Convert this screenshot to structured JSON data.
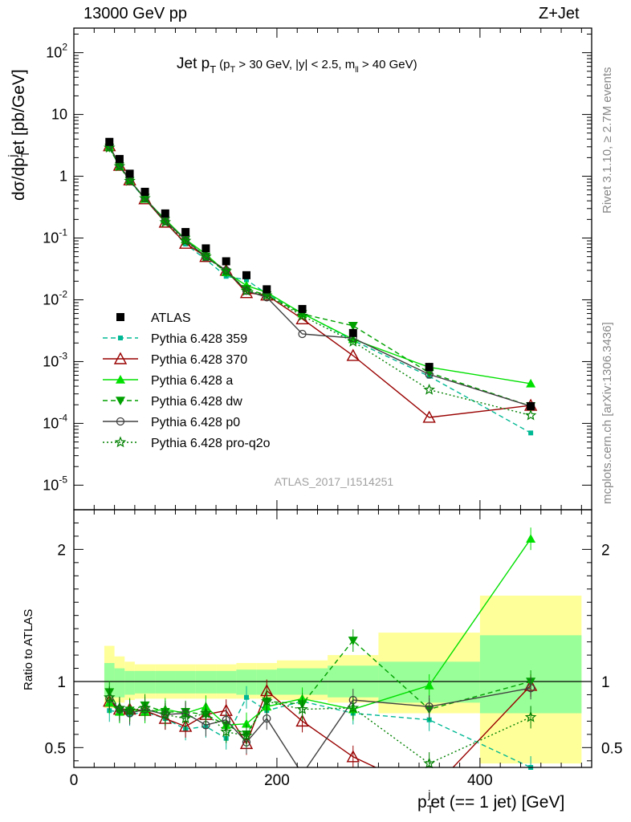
{
  "header": {
    "beam_label": "13000 GeV pp",
    "process_label": "Z+Jet"
  },
  "side_labels": {
    "rivet": "Rivet 3.1.10, ≥ 2.7M events",
    "mcplots": "mcplots.cern.ch [arXiv:1306.3436]"
  },
  "chart_data": {
    "type": "line",
    "analysis_id": "ATLAS_2017_I1514251",
    "title_main": "Jet p",
    "title_sub": "T",
    "title_cuts": "(p",
    "title_cuts_sub": "T",
    "title_cuts_rest": " > 30 GeV, |y| < 2.5, m",
    "title_cuts_sub2": "ll",
    "title_cuts_end": " > 40 GeV)",
    "xlabel_main": "p",
    "xlabel_sup": "j",
    "xlabel_sub": "T",
    "xlabel_rest": "et (== 1 jet) [GeV]",
    "ylabel_main": "dσ/dp",
    "ylabel_sup": "j",
    "ylabel_sub": "T",
    "ylabel_rest": "et [pb/GeV]",
    "ratio_ylabel": "Ratio to ATLAS",
    "xlim": [
      0,
      510
    ],
    "ylim": [
      4e-06,
      250
    ],
    "yscale": "log",
    "ratio_ylim": [
      0.35,
      2.3
    ],
    "x_ticks": [
      0,
      200,
      400
    ],
    "y_tick_labels": [
      "10^-5",
      "10^-4",
      "10^-3",
      "10^-2",
      "10^-1",
      "1",
      "10",
      "10^2"
    ],
    "ratio_ticks": [
      0.5,
      1,
      2
    ],
    "legend_position": "middle-left",
    "x": [
      35,
      45,
      55,
      70,
      90,
      110,
      130,
      150,
      170,
      190,
      225,
      275,
      350,
      450
    ],
    "data": {
      "name": "ATLAS",
      "values": [
        3.6,
        1.9,
        1.1,
        0.56,
        0.25,
        0.125,
        0.068,
        0.042,
        0.025,
        0.0148,
        0.0071,
        0.0029,
        0.00082,
        0.00019
      ],
      "ratio_band_inner": [
        [
          0.88,
          1.14
        ],
        [
          0.88,
          1.1
        ],
        [
          0.9,
          1.08
        ],
        [
          0.91,
          1.08
        ],
        [
          0.91,
          1.08
        ],
        [
          0.91,
          1.08
        ],
        [
          0.91,
          1.08
        ],
        [
          0.91,
          1.08
        ],
        [
          0.9,
          1.09
        ],
        [
          0.9,
          1.09
        ],
        [
          0.9,
          1.1
        ],
        [
          0.88,
          1.12
        ],
        [
          0.84,
          1.15
        ],
        [
          0.76,
          1.35
        ]
      ],
      "ratio_band_outer": [
        [
          0.8,
          1.27
        ],
        [
          0.84,
          1.19
        ],
        [
          0.86,
          1.15
        ],
        [
          0.87,
          1.13
        ],
        [
          0.87,
          1.13
        ],
        [
          0.87,
          1.13
        ],
        [
          0.87,
          1.13
        ],
        [
          0.87,
          1.13
        ],
        [
          0.87,
          1.14
        ],
        [
          0.87,
          1.14
        ],
        [
          0.86,
          1.16
        ],
        [
          0.84,
          1.2
        ],
        [
          0.76,
          1.37
        ],
        [
          0.38,
          1.65
        ]
      ],
      "band_edges": [
        30,
        40,
        50,
        60,
        80,
        100,
        120,
        140,
        160,
        180,
        200,
        250,
        300,
        400,
        500
      ]
    },
    "series": [
      {
        "name": "Pythia 6.428 359",
        "color": "#00b894",
        "dash": "6,4",
        "marker": "square",
        "values": [
          2.8,
          1.5,
          0.83,
          0.43,
          0.18,
          0.08,
          0.045,
          0.024,
          0.021,
          0.0126,
          0.0061,
          0.0022,
          0.00058,
          7e-05
        ],
        "ratio": [
          0.78,
          0.77,
          0.75,
          0.77,
          0.72,
          0.64,
          0.66,
          0.57,
          0.88,
          0.78,
          0.85,
          0.76,
          0.71,
          0.35
        ]
      },
      {
        "name": "Pythia 6.428 370",
        "color": "#990000",
        "dash": "",
        "marker": "triangle-open",
        "values": [
          3.1,
          1.5,
          0.87,
          0.43,
          0.18,
          0.082,
          0.05,
          0.03,
          0.013,
          0.0119,
          0.0049,
          0.00125,
          0.000125,
          0.000195
        ],
        "ratio": [
          0.85,
          0.79,
          0.79,
          0.78,
          0.72,
          0.66,
          0.75,
          0.78,
          0.53,
          0.93,
          0.7,
          0.43,
          0.16,
          0.97
        ]
      },
      {
        "name": "Pythia 6.428 a",
        "color": "#00e000",
        "dash": "",
        "marker": "triangle",
        "values": [
          3.0,
          1.45,
          0.87,
          0.43,
          0.2,
          0.095,
          0.055,
          0.028,
          0.017,
          0.0132,
          0.006,
          0.0023,
          0.00081,
          0.00044
        ],
        "ratio": [
          0.84,
          0.77,
          0.79,
          0.77,
          0.79,
          0.76,
          0.81,
          0.67,
          0.68,
          0.81,
          0.87,
          0.79,
          0.97,
          2.08
        ]
      },
      {
        "name": "Pythia 6.428 dw",
        "color": "#00a000",
        "dash": "6,4",
        "marker": "triangle-down",
        "values": [
          2.9,
          1.45,
          0.84,
          0.45,
          0.19,
          0.094,
          0.05,
          0.028,
          0.015,
          0.0119,
          0.0059,
          0.0038,
          0.00066,
          0.00019
        ],
        "ratio": [
          0.92,
          0.78,
          0.78,
          0.82,
          0.77,
          0.77,
          0.75,
          0.67,
          0.6,
          0.85,
          0.83,
          1.31,
          0.79,
          1.0
        ]
      },
      {
        "name": "Pythia 6.428 p0",
        "color": "#404040",
        "dash": "",
        "marker": "circle-open",
        "values": [
          3.1,
          1.5,
          0.85,
          0.44,
          0.19,
          0.093,
          0.049,
          0.03,
          0.014,
          0.011,
          0.0028,
          0.0024,
          0.00062,
          0.00019
        ],
        "ratio": [
          0.87,
          0.79,
          0.76,
          0.79,
          0.75,
          0.76,
          0.67,
          0.71,
          0.54,
          0.72,
          0.3,
          0.86,
          0.81,
          0.95
        ]
      },
      {
        "name": "Pythia 6.428 pro-q2o",
        "color": "#008000",
        "dash": "2,3",
        "marker": "star",
        "values": [
          2.9,
          1.45,
          0.84,
          0.44,
          0.18,
          0.09,
          0.05,
          0.029,
          0.014,
          0.0118,
          0.0055,
          0.0021,
          0.00035,
          0.000135
        ],
        "ratio": [
          0.88,
          0.8,
          0.78,
          0.8,
          0.75,
          0.72,
          0.76,
          0.62,
          0.59,
          0.85,
          0.79,
          0.8,
          0.38,
          0.73
        ]
      }
    ]
  }
}
